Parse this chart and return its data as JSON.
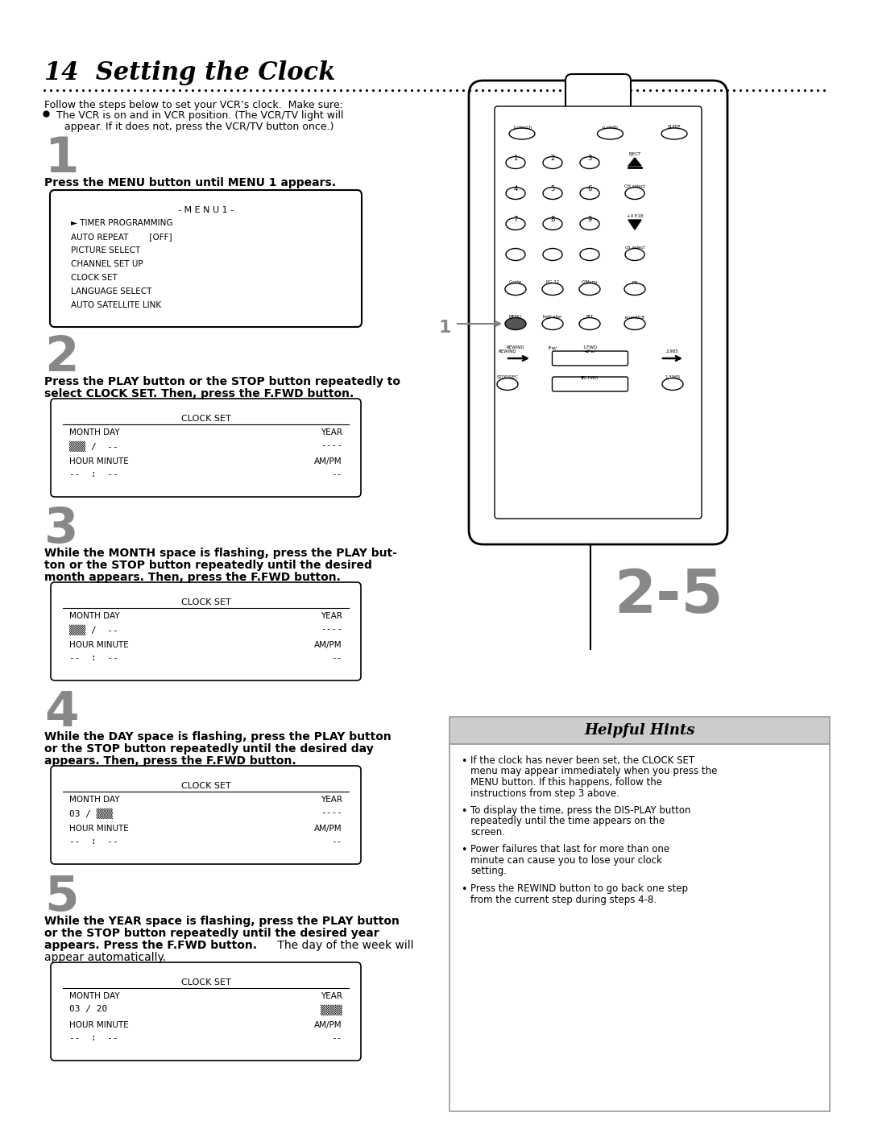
{
  "title": "14  Setting the Clock",
  "intro_text": "Follow the steps below to set your VCR’s clock.  Make sure:",
  "bullet_line1": "The VCR is on and in VCR position. (The VCR/TV light will",
  "bullet_line2": "appear. If it does not, press the VCR/TV button once.)",
  "step1_num": "1",
  "step1_bold": "Press the MENU button until MENU 1 appears.",
  "menu1_title": "- M E N U 1 -",
  "menu1_items": [
    "► TIMER PROGRAMMING",
    "AUTO REPEAT        [OFF]",
    "PICTURE SELECT",
    "CHANNEL SET UP",
    "CLOCK SET",
    "LANGUAGE SELECT",
    "AUTO SATELLITE LINK"
  ],
  "step2_num": "2",
  "step2_line1": "Press the PLAY button or the STOP button repeatedly to",
  "step2_line2": "select CLOCK SET. Then, press the F.FWD button.",
  "clock_set_title": "CLOCK SET",
  "clock_fields_left": "MONTH DAY",
  "clock_fields_right": "YEAR",
  "clock_fields_left2": "HOUR MINUTE",
  "clock_fields_right2": "AM/PM",
  "clock1_val_left": "▒▒▒ /  --",
  "clock1_val_right": "----",
  "clock1_val_left2": "--  :  --",
  "clock1_val_right2": "--",
  "step3_num": "3",
  "step3_line1": "While the MONTH space is flashing, press the PLAY but-",
  "step3_line2": "ton or the STOP button repeatedly until the desired",
  "step3_line3": "month appears. Then, press the F.FWD button.",
  "clock2_val_left": "▒▒▒ /  --",
  "clock2_val_right": "----",
  "step4_num": "4",
  "step4_line1": "While the DAY space is flashing, press the PLAY button",
  "step4_line2": "or the STOP button repeatedly until the desired day",
  "step4_line3": "appears. Then, press the F.FWD button.",
  "clock3_val_left": "03 / ▒▒▒",
  "clock3_val_right": "----",
  "step5_num": "5",
  "step5_line1": "While the YEAR space is flashing, press the PLAY button",
  "step5_line2": "or the STOP button repeatedly until the desired year",
  "step5_line3_bold": "appears. Press the F.FWD button.",
  "step5_line3_normal": " The day of the week will",
  "step5_line4": "appear automatically.",
  "clock4_val_left": "03 / 20",
  "clock4_val_right": "▒▒▒▒",
  "helpful_title": "Helpful Hints",
  "helpful_bullets": [
    "If the clock has never been set, the CLOCK SET menu may appear immediately when you press the MENU button. If this happens, follow the instructions from step 3 above.",
    "To display the time, press the DIS-PLAY button repeatedly until the time appears on the screen.",
    "Power failures that last for more than one minute can cause you to lose your clock setting.",
    "Press the REWIND button to go back one step from the current step during steps 4-8."
  ],
  "label_2_5": "2-5",
  "label_1": "1",
  "bg_color": "#ffffff",
  "text_color": "#000000",
  "gray_color": "#888888"
}
